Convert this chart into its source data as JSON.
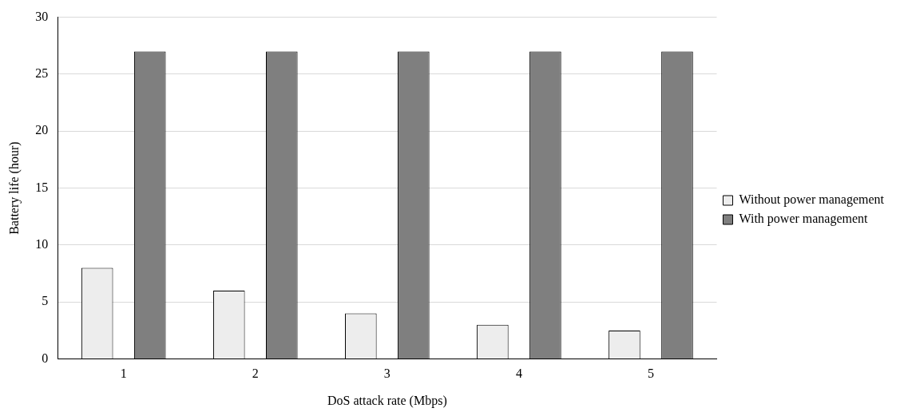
{
  "chart_data": {
    "type": "bar",
    "xlabel": "DoS attack rate (Mbps)",
    "ylabel": "Battery life (hour)",
    "categories": [
      "1",
      "2",
      "3",
      "4",
      "5"
    ],
    "series": [
      {
        "name": "Without power management",
        "color": "#ededed",
        "values": [
          8,
          6,
          4,
          3,
          2.5
        ]
      },
      {
        "name": "With power management",
        "color": "#7f7f7f",
        "values": [
          27,
          27,
          27,
          27,
          27
        ]
      }
    ],
    "ylim": [
      0,
      30
    ],
    "yticks": [
      0,
      5,
      10,
      15,
      20,
      25,
      30
    ],
    "grid": "y",
    "legend": "right"
  }
}
